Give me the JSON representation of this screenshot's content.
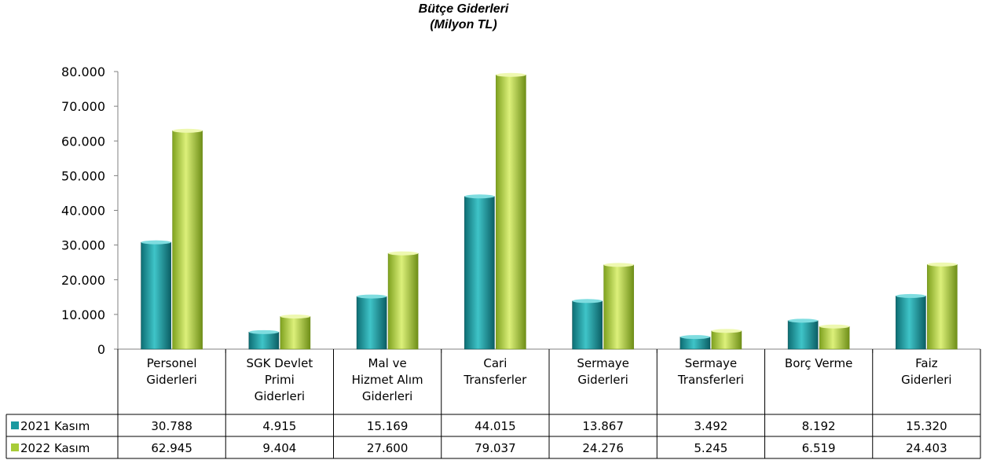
{
  "chart_data": {
    "type": "bar",
    "title": "Bütçe Giderleri",
    "subtitle": "(Milyon TL)",
    "categories": [
      [
        "Personel",
        "Giderleri"
      ],
      [
        "SGK Devlet",
        "Primi",
        "Giderleri"
      ],
      [
        "Mal ve",
        "Hizmet Alım",
        "Giderleri"
      ],
      [
        "Cari",
        "Transferler"
      ],
      [
        "Sermaye",
        "Giderleri"
      ],
      [
        "Sermaye",
        "Transferleri"
      ],
      [
        "Borç Verme"
      ],
      [
        "Faiz",
        "Giderleri"
      ]
    ],
    "series": [
      {
        "name": "2021  Kasım",
        "color": "#1a9aa0",
        "values": [
          30788,
          4915,
          15169,
          44015,
          13867,
          3492,
          8192,
          15320
        ],
        "labels": [
          "30.788",
          "4.915",
          "15.169",
          "44.015",
          "13.867",
          "3.492",
          "8.192",
          "15.320"
        ]
      },
      {
        "name": "2022  Kasım",
        "color": "#a8cc38",
        "values": [
          62945,
          9404,
          27600,
          79037,
          24276,
          5245,
          6519,
          24403
        ],
        "labels": [
          "62.945",
          "9.404",
          "27.600",
          "79.037",
          "24.276",
          "5.245",
          "6.519",
          "24.403"
        ]
      }
    ],
    "ylim": [
      0,
      80000
    ],
    "yticks": [
      0,
      10000,
      20000,
      30000,
      40000,
      50000,
      60000,
      70000,
      80000
    ],
    "ytick_labels": [
      "0",
      "10.000",
      "20.000",
      "30.000",
      "40.000",
      "50.000",
      "60.000",
      "70.000",
      "80.000"
    ],
    "grid": false,
    "legend": "data-table"
  }
}
